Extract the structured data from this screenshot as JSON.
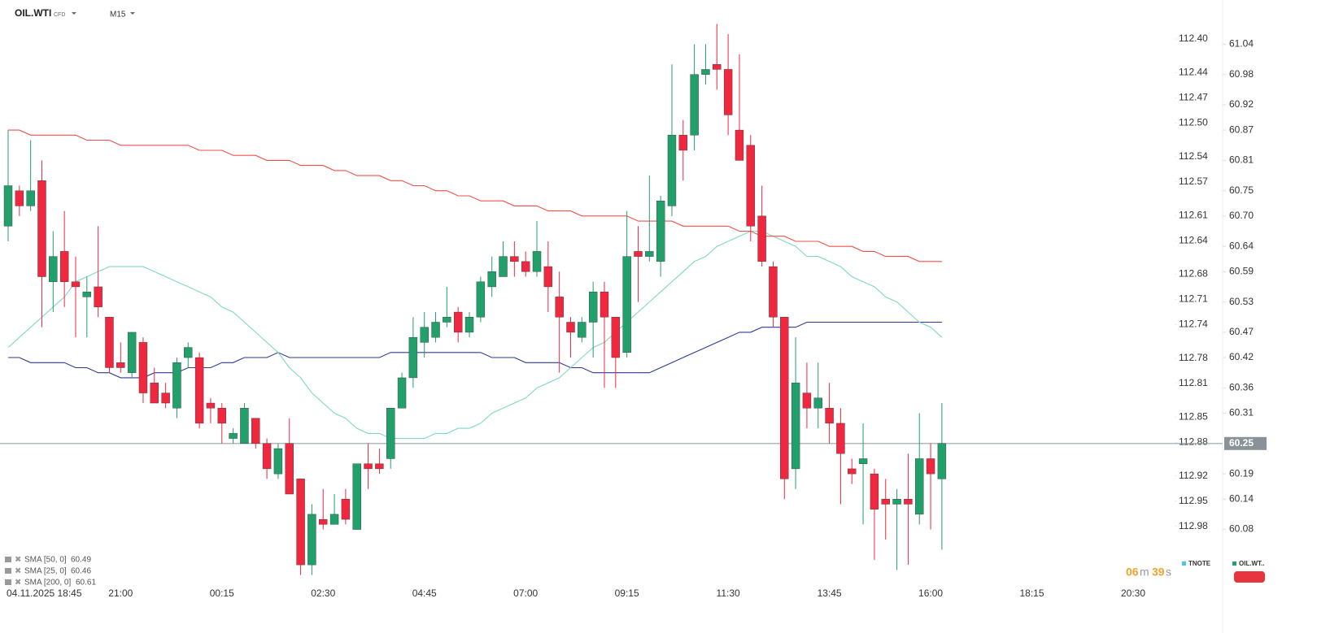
{
  "chart_data": {
    "type": "candlestick",
    "symbol": "OIL.WTI",
    "instrument_type": "CFD",
    "timeframe": "M15",
    "categories": [
      null,
      "04.11.2025 18:45",
      null,
      null,
      null,
      null,
      null,
      null,
      null,
      null,
      "21:00",
      null,
      null,
      null,
      null,
      null,
      null,
      null,
      null,
      "00:15",
      null,
      null,
      null,
      null,
      null,
      null,
      null,
      null,
      "02:30",
      null,
      null,
      null,
      null,
      null,
      null,
      null,
      null,
      "04:45",
      null,
      null,
      null,
      null,
      null,
      null,
      null,
      null,
      "07:00",
      null,
      null,
      null,
      null,
      null,
      null,
      null,
      null,
      "09:15",
      null,
      null,
      null,
      null,
      null,
      null,
      null,
      null,
      "11:30",
      null,
      null,
      null,
      null,
      null,
      null,
      null,
      null,
      "13:45",
      null,
      null,
      null,
      null,
      null,
      null,
      null,
      null,
      "16:00",
      null,
      null,
      null,
      null,
      null,
      null,
      null,
      null,
      "18:15",
      null,
      null,
      null,
      null,
      null,
      null,
      null,
      null,
      "20:30"
    ],
    "open": [
      60.68,
      60.75,
      60.72,
      60.77,
      60.57,
      60.63,
      60.57,
      60.54,
      60.56,
      60.5,
      60.41,
      60.39,
      60.45,
      60.37,
      60.35,
      60.32,
      60.42,
      60.42,
      60.33,
      60.32,
      60.26,
      60.25,
      60.3,
      60.25,
      60.19,
      60.25,
      60.18,
      60.01,
      60.1,
      60.09,
      60.14,
      60.08,
      60.21,
      60.21,
      60.22,
      60.32,
      60.38,
      60.45,
      60.46,
      60.49,
      60.51,
      60.47,
      60.5,
      60.56,
      60.58,
      60.62,
      60.61,
      60.59,
      60.6,
      60.54,
      60.49,
      60.46,
      60.49,
      60.55,
      60.5,
      60.43,
      60.63,
      60.62,
      60.61,
      60.72,
      60.86,
      60.86,
      60.98,
      61.0,
      60.99,
      60.87,
      60.84,
      60.7,
      60.6,
      60.5,
      60.2,
      60.35,
      60.32,
      60.32,
      60.29,
      60.2,
      60.21,
      60.19,
      60.14,
      60.13,
      60.14,
      60.11,
      60.22,
      60.18,
      null,
      null,
      null,
      null,
      null,
      null,
      null,
      null,
      null,
      null,
      null,
      null,
      null,
      null,
      null,
      null,
      null
    ],
    "high": [
      60.87,
      60.76,
      60.85,
      60.81,
      60.67,
      60.71,
      60.62,
      60.58,
      60.68,
      60.5,
      60.45,
      60.47,
      60.46,
      60.4,
      60.37,
      60.42,
      60.45,
      60.43,
      60.34,
      60.33,
      60.28,
      60.33,
      60.3,
      60.26,
      60.25,
      60.3,
      60.18,
      60.13,
      60.16,
      60.15,
      60.16,
      60.21,
      60.25,
      60.24,
      60.32,
      60.39,
      60.5,
      60.51,
      60.51,
      60.56,
      60.52,
      60.51,
      60.58,
      60.62,
      60.65,
      60.65,
      60.63,
      60.69,
      60.65,
      60.59,
      60.5,
      60.5,
      60.57,
      60.57,
      60.5,
      60.71,
      60.68,
      60.78,
      60.74,
      61.0,
      60.89,
      61.04,
      61.04,
      61.08,
      61.06,
      61.02,
      60.86,
      60.76,
      60.61,
      60.5,
      60.46,
      60.41,
      60.41,
      60.37,
      60.32,
      60.22,
      60.29,
      60.2,
      60.18,
      60.16,
      60.23,
      60.31,
      60.25,
      60.33,
      null,
      null,
      null,
      null,
      null,
      null,
      null,
      null,
      null,
      null,
      null,
      null,
      null,
      null,
      null,
      null,
      null
    ],
    "low": [
      60.65,
      60.7,
      60.71,
      60.48,
      60.51,
      60.52,
      60.46,
      60.46,
      60.5,
      60.39,
      60.39,
      60.38,
      60.33,
      60.33,
      60.32,
      60.3,
      60.4,
      60.28,
      60.29,
      60.25,
      60.25,
      60.25,
      60.24,
      60.18,
      60.18,
      60.15,
      59.99,
      59.99,
      60.08,
      60.09,
      60.09,
      60.08,
      60.16,
      60.19,
      60.2,
      60.32,
      60.36,
      60.42,
      60.45,
      60.48,
      60.45,
      60.46,
      60.49,
      60.54,
      60.58,
      60.58,
      60.58,
      60.58,
      60.51,
      60.39,
      60.42,
      60.45,
      60.42,
      60.36,
      60.36,
      60.42,
      60.53,
      60.61,
      60.58,
      60.7,
      60.77,
      60.83,
      60.96,
      60.95,
      60.86,
      60.81,
      60.65,
      60.6,
      60.48,
      60.14,
      60.16,
      60.28,
      60.28,
      60.25,
      60.13,
      60.17,
      60.09,
      60.02,
      60.06,
      60.0,
      60.01,
      60.09,
      60.08,
      60.04,
      null,
      null,
      null,
      null,
      null,
      null,
      null,
      null,
      null,
      null,
      null,
      null,
      null,
      null,
      null,
      null,
      null
    ],
    "close": [
      60.76,
      60.72,
      60.75,
      60.58,
      60.62,
      60.57,
      60.56,
      60.55,
      60.52,
      60.4,
      60.4,
      60.47,
      60.35,
      60.33,
      60.33,
      60.41,
      60.44,
      60.29,
      60.32,
      60.29,
      60.27,
      60.32,
      60.25,
      60.2,
      60.24,
      60.15,
      60.01,
      60.11,
      60.09,
      60.11,
      60.1,
      60.21,
      60.2,
      60.2,
      60.32,
      60.38,
      60.46,
      60.48,
      60.49,
      60.5,
      60.47,
      60.5,
      60.57,
      60.59,
      60.62,
      60.61,
      60.59,
      60.63,
      60.56,
      60.5,
      60.47,
      60.49,
      60.55,
      60.5,
      60.42,
      60.62,
      60.62,
      60.63,
      60.73,
      60.86,
      60.83,
      60.98,
      60.99,
      60.99,
      60.9,
      60.81,
      60.68,
      60.61,
      60.5,
      60.18,
      60.37,
      60.32,
      60.34,
      60.29,
      60.23,
      60.19,
      60.22,
      60.12,
      60.13,
      60.14,
      60.13,
      60.22,
      60.19,
      60.25,
      null,
      null,
      null,
      null,
      null,
      null,
      null,
      null,
      null,
      null,
      null,
      null,
      null,
      null,
      null,
      null,
      null
    ],
    "up_color": "#22a06b",
    "down_color": "#f0283f",
    "series": [
      {
        "name": "SMA [50, 0]",
        "color": "#2e3a98",
        "values": [
          60.42,
          60.42,
          60.41,
          60.41,
          60.41,
          60.41,
          60.4,
          60.4,
          60.39,
          60.39,
          60.38,
          60.38,
          60.38,
          60.39,
          60.39,
          60.39,
          60.4,
          60.4,
          60.4,
          60.41,
          60.41,
          60.42,
          60.42,
          60.42,
          60.43,
          60.42,
          60.42,
          60.42,
          60.42,
          60.42,
          60.42,
          60.42,
          60.42,
          60.42,
          60.43,
          60.43,
          60.43,
          60.43,
          60.43,
          60.43,
          60.43,
          60.43,
          60.43,
          60.42,
          60.42,
          60.42,
          60.41,
          60.41,
          60.41,
          60.41,
          60.4,
          60.4,
          60.39,
          60.39,
          60.39,
          60.39,
          60.39,
          60.39,
          60.4,
          60.41,
          60.42,
          60.43,
          60.44,
          60.45,
          60.46,
          60.47,
          60.47,
          60.48,
          60.48,
          60.48,
          60.48,
          60.49,
          60.49,
          60.49,
          60.49,
          60.49,
          60.49,
          60.49,
          60.49,
          60.49,
          60.49,
          60.49,
          60.49,
          60.49,
          null,
          null,
          null,
          null,
          null,
          null,
          null,
          null,
          null,
          null,
          null,
          null,
          null,
          null,
          null,
          null,
          null
        ]
      },
      {
        "name": "SMA [25, 0]",
        "color": "#7fd8c2",
        "values": [
          60.44,
          60.46,
          60.48,
          60.5,
          60.52,
          60.54,
          60.57,
          60.58,
          60.59,
          60.6,
          60.6,
          60.6,
          60.6,
          60.59,
          60.58,
          60.57,
          60.56,
          60.55,
          60.54,
          60.52,
          60.51,
          60.49,
          60.47,
          60.45,
          60.43,
          60.4,
          60.38,
          60.35,
          60.33,
          60.31,
          60.3,
          60.28,
          60.27,
          60.27,
          60.26,
          60.26,
          60.26,
          60.26,
          60.27,
          60.27,
          60.28,
          60.28,
          60.29,
          60.31,
          60.32,
          60.33,
          60.34,
          60.36,
          60.37,
          60.38,
          60.4,
          60.42,
          60.44,
          60.45,
          60.47,
          60.49,
          60.51,
          60.53,
          60.55,
          60.57,
          60.59,
          60.61,
          60.62,
          60.64,
          60.65,
          60.66,
          60.67,
          60.67,
          60.66,
          60.65,
          60.64,
          60.62,
          60.62,
          60.61,
          60.6,
          60.58,
          60.57,
          60.56,
          60.54,
          60.53,
          60.51,
          60.49,
          60.48,
          60.46,
          null,
          null,
          null,
          null,
          null,
          null,
          null,
          null,
          null,
          null,
          null,
          null,
          null,
          null,
          null,
          null,
          null
        ]
      },
      {
        "name": "SMA [200, 0]",
        "color": "#f2504b",
        "values": [
          60.87,
          60.87,
          60.86,
          60.86,
          60.86,
          60.86,
          60.86,
          60.85,
          60.85,
          60.85,
          60.84,
          60.84,
          60.84,
          60.84,
          60.84,
          60.84,
          60.84,
          60.83,
          60.83,
          60.83,
          60.82,
          60.82,
          60.82,
          60.81,
          60.81,
          60.81,
          60.8,
          60.8,
          60.8,
          60.79,
          60.79,
          60.78,
          60.78,
          60.78,
          60.77,
          60.77,
          60.76,
          60.76,
          60.75,
          60.75,
          60.74,
          60.74,
          60.73,
          60.73,
          60.73,
          60.72,
          60.72,
          60.72,
          60.71,
          60.71,
          60.71,
          60.7,
          60.7,
          60.7,
          60.7,
          60.7,
          60.69,
          60.69,
          60.69,
          60.69,
          60.68,
          60.68,
          60.68,
          60.68,
          60.68,
          60.67,
          60.67,
          60.66,
          60.66,
          60.66,
          60.65,
          60.65,
          60.65,
          60.64,
          60.64,
          60.64,
          60.63,
          60.63,
          60.62,
          60.62,
          60.62,
          60.61,
          60.61,
          60.61,
          null,
          null,
          null,
          null,
          null,
          null,
          null,
          null,
          null,
          null,
          null,
          null,
          null,
          null,
          null,
          null,
          null
        ]
      }
    ],
    "ylim": [
      59.97,
      61.1
    ],
    "yticks": [
      61.04,
      60.98,
      60.92,
      60.87,
      60.81,
      60.75,
      {
        "value": 60.7,
        "label": "60.70"
      },
      60.64,
      60.59,
      60.53,
      60.47,
      60.42,
      60.36,
      60.31,
      60.19,
      60.14,
      60.08
    ],
    "y2lim": [
      113.05,
      112.37
    ],
    "y2ticks": [
      {
        "value": 112.4,
        "label": "112.40"
      },
      112.44,
      112.47,
      {
        "value": 112.5,
        "label": "112.50"
      },
      112.54,
      112.57,
      112.61,
      112.64,
      112.68,
      112.71,
      112.74,
      112.78,
      112.81,
      112.85,
      112.88,
      112.92,
      112.95,
      112.98
    ],
    "current_price": 60.25,
    "countdown": {
      "minutes": "06",
      "minutes_unit": "m",
      "seconds": "39",
      "seconds_unit": "s"
    },
    "instrument_legend": [
      {
        "name": "TNOTE",
        "color": "#4fc3e8"
      },
      {
        "name": "OIL.WT..",
        "color": "#22a06b"
      }
    ]
  }
}
